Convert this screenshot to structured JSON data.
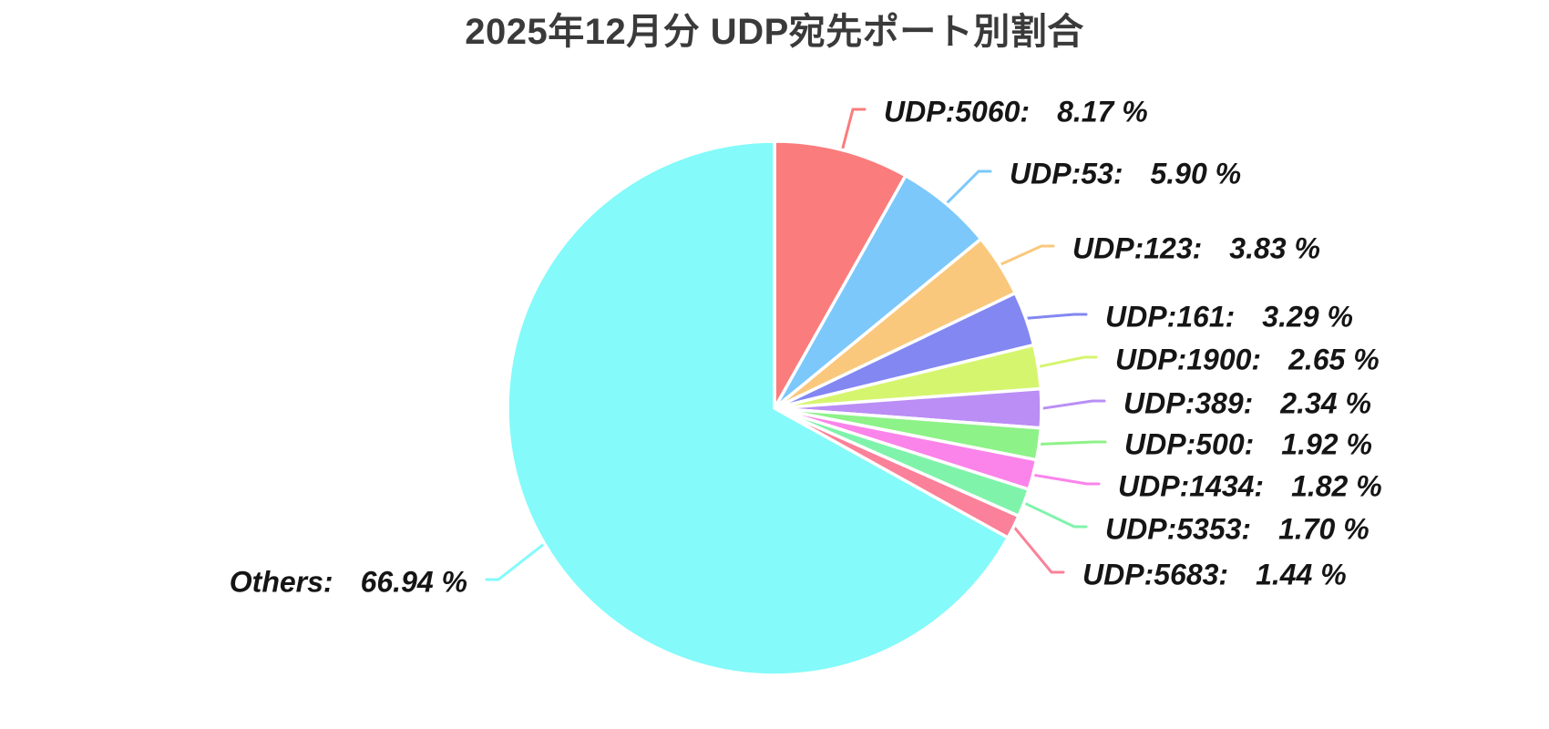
{
  "title": "2025年12月分 UDP宛先ポート別割合",
  "chart_data": {
    "type": "pie",
    "title": "2025年12月分 UDP宛先ポート別割合",
    "unit": "percent",
    "total": 100,
    "start_angle_deg": 0,
    "direction": "clockwise",
    "legend": "none",
    "label_style": "callout-leader-lines",
    "slices": [
      {
        "name": "UDP:5060",
        "value": 8.17,
        "value_label": "8.17 %",
        "color": "#FA7C7C"
      },
      {
        "name": "UDP:53",
        "value": 5.9,
        "value_label": "5.90 %",
        "color": "#7CC8FA"
      },
      {
        "name": "UDP:123",
        "value": 3.83,
        "value_label": "3.83 %",
        "color": "#FAC87C"
      },
      {
        "name": "UDP:161",
        "value": 3.29,
        "value_label": "3.29 %",
        "color": "#8387F2"
      },
      {
        "name": "UDP:1900",
        "value": 2.65,
        "value_label": "2.65 %",
        "color": "#D6F56E"
      },
      {
        "name": "UDP:389",
        "value": 2.34,
        "value_label": "2.34 %",
        "color": "#BA8EF5"
      },
      {
        "name": "UDP:500",
        "value": 1.92,
        "value_label": "1.92 %",
        "color": "#8DF288"
      },
      {
        "name": "UDP:1434",
        "value": 1.82,
        "value_label": "1.82 %",
        "color": "#FB84EA"
      },
      {
        "name": "UDP:5353",
        "value": 1.7,
        "value_label": "1.70 %",
        "color": "#80F3AB"
      },
      {
        "name": "UDP:5683",
        "value": 1.44,
        "value_label": "1.44 %",
        "color": "#FA8199"
      },
      {
        "name": "Others",
        "value": 66.94,
        "value_label": "66.94 %",
        "color": "#84FAFA"
      }
    ]
  },
  "styles": {
    "background": "#FFFFFF",
    "title_color": "#3A3A3A",
    "label_color": "#151515",
    "slice_border_color": "#FFFFFF"
  }
}
